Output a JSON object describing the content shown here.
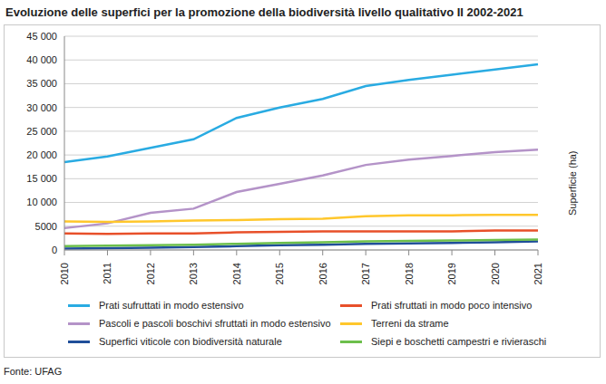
{
  "chart_data": {
    "type": "line",
    "title": "Evoluzione delle superfici per la promozione della biodiversità livello qualitativo II 2002-2021",
    "y_label": "Superficie (ha)",
    "source": "Fonte: UFAG",
    "categories": [
      "2010",
      "2011",
      "2012",
      "2013",
      "2014",
      "2015",
      "2016",
      "2017",
      "2018",
      "2019",
      "2020",
      "2021"
    ],
    "ylim": [
      0,
      45000
    ],
    "yticks": [
      0,
      {
        "value": 5000,
        "label": "5000"
      },
      {
        "value": 10000,
        "label": "10 000"
      },
      {
        "value": 15000,
        "label": "15 000"
      },
      {
        "value": 20000,
        "label": "20 000"
      },
      {
        "value": 25000,
        "label": "25 000"
      },
      {
        "value": 30000,
        "label": "30 000"
      },
      {
        "value": 35000,
        "label": "35 000"
      },
      {
        "value": 40000,
        "label": "40 000"
      },
      {
        "value": 45000,
        "label": "45 000"
      }
    ],
    "grid": true,
    "legend": "bottom",
    "series": [
      {
        "name": "Prati sufruttati in modo estensivo",
        "color": "#29abe2",
        "values": [
          18500,
          19700,
          21500,
          23300,
          27800,
          30000,
          31800,
          34500,
          35800,
          36900,
          38000,
          39100
        ]
      },
      {
        "name": "Prati sfruttati in modo poco intensivo",
        "color": "#e8502a",
        "values": [
          3500,
          3400,
          3500,
          3500,
          3700,
          3800,
          3900,
          3900,
          3900,
          3900,
          4100,
          4100
        ]
      },
      {
        "name": "Pascoli e pascoli boschivi sfruttati in modo estensivo",
        "color": "#b493c8",
        "values": [
          4600,
          5600,
          7800,
          8700,
          12200,
          13900,
          15700,
          17900,
          19000,
          19800,
          20600,
          21100
        ]
      },
      {
        "name": "Terreni da strame",
        "color": "#ffc72c",
        "values": [
          6000,
          5900,
          6000,
          6200,
          6300,
          6500,
          6600,
          7100,
          7300,
          7300,
          7400,
          7400
        ]
      },
      {
        "name": "Superfici viticole con biodiversità naturale",
        "color": "#1f4e99",
        "values": [
          300,
          400,
          500,
          600,
          800,
          1000,
          1100,
          1300,
          1400,
          1500,
          1600,
          1800
        ]
      },
      {
        "name": "Siepi e boschetti campestri e rivieraschi",
        "color": "#6cbf4b",
        "values": [
          800,
          900,
          1000,
          1100,
          1300,
          1500,
          1600,
          1800,
          1900,
          2000,
          2100,
          2200
        ]
      }
    ]
  }
}
